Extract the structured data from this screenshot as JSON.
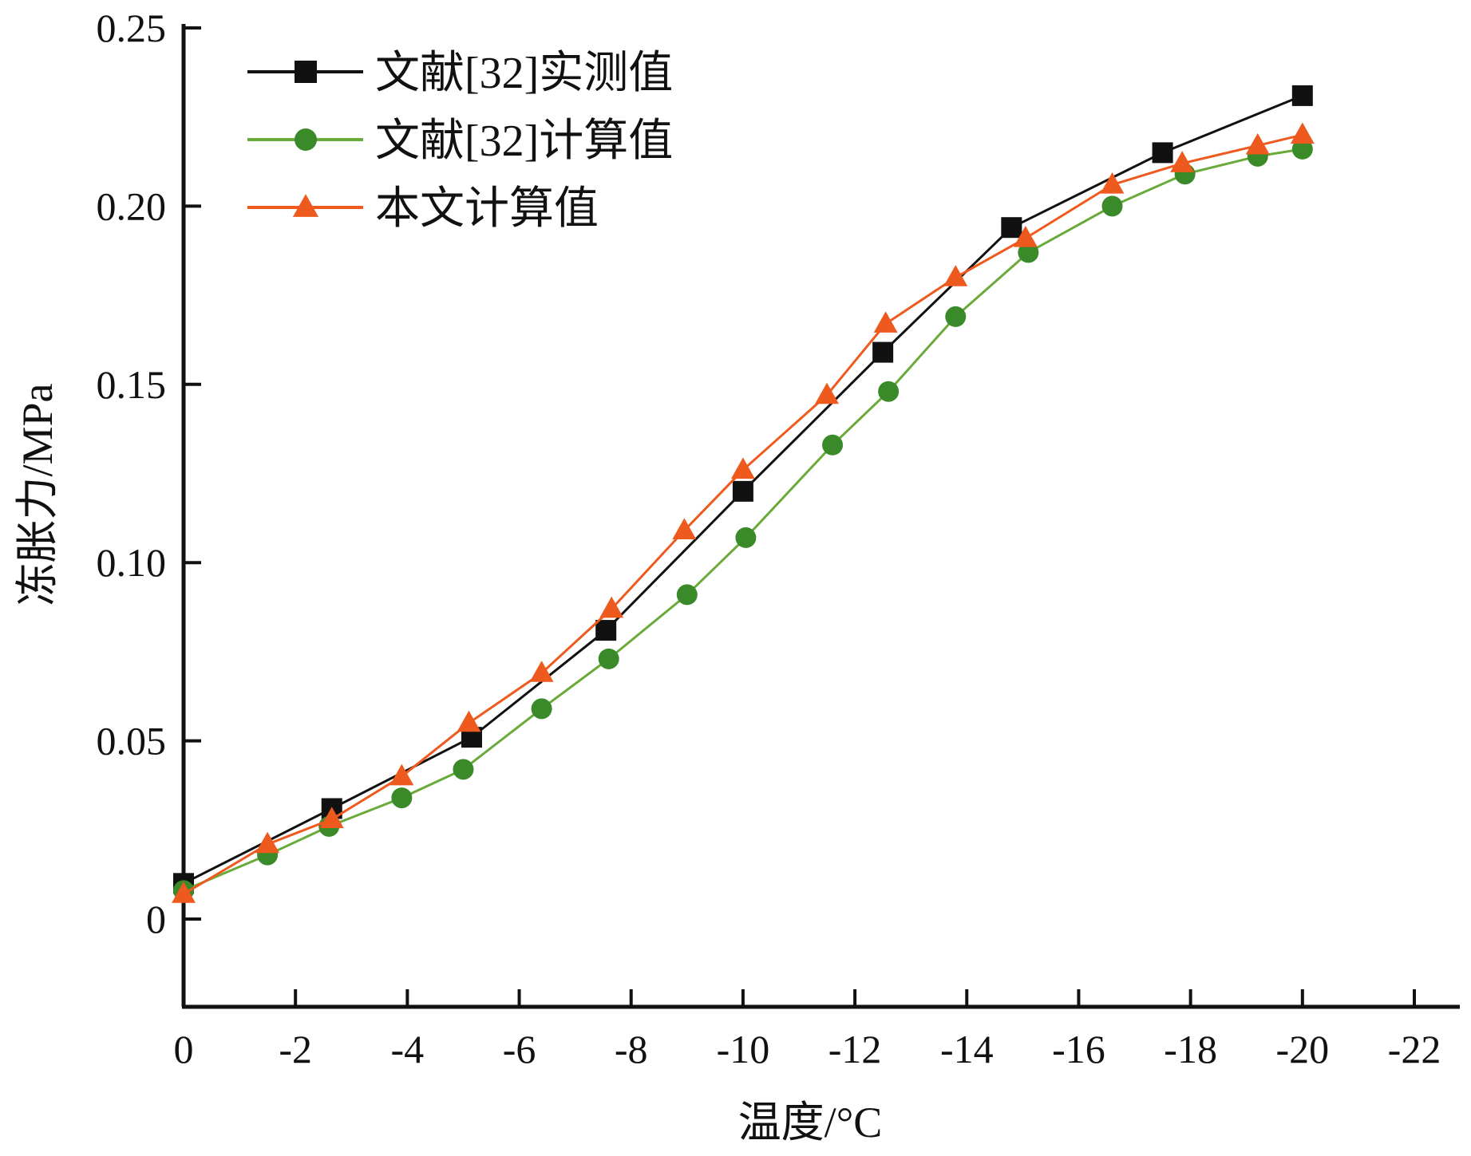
{
  "chart_data": {
    "type": "line",
    "title": "",
    "xlabel": "温度/°C",
    "ylabel": "冻胀力/MPa",
    "xlim": [
      0,
      -22
    ],
    "ylim": [
      -0.025,
      0.25
    ],
    "x_ticks": [
      0,
      -2,
      -4,
      -6,
      -8,
      -10,
      -12,
      -14,
      -16,
      -18,
      -20,
      -22
    ],
    "x_tick_labels": [
      "0",
      "-2",
      "-4",
      "-6",
      "-8",
      "-10",
      "-12",
      "-14",
      "-16",
      "-18",
      "-20",
      "-22"
    ],
    "y_ticks": [
      0,
      0.05,
      0.1,
      0.15,
      0.2,
      0.25
    ],
    "y_tick_labels": [
      "0",
      "0.05",
      "0.10",
      "0.15",
      "0.20",
      "0.25"
    ],
    "grid": false,
    "legend_position": "top-left",
    "series": [
      {
        "name": "文献[32]实测值",
        "color": "#111111",
        "marker": "square",
        "x": [
          0,
          -2.65,
          -5.15,
          -7.55,
          -10,
          -12.5,
          -14.8,
          -17.5,
          -20
        ],
        "y": [
          0.01,
          0.031,
          0.051,
          0.081,
          0.12,
          0.159,
          0.194,
          0.215,
          0.231
        ]
      },
      {
        "name": "文献[32]计算值",
        "color": "#3a8a2a",
        "line_color": "#6aaa3a",
        "marker": "circle",
        "x": [
          0,
          -1.5,
          -2.6,
          -3.9,
          -5.0,
          -6.4,
          -7.6,
          -9.0,
          -10.05,
          -11.6,
          -12.6,
          -13.8,
          -15.1,
          -16.6,
          -17.9,
          -19.2,
          -20
        ],
        "y": [
          0.008,
          0.018,
          0.026,
          0.034,
          0.042,
          0.059,
          0.073,
          0.091,
          0.107,
          0.133,
          0.148,
          0.169,
          0.187,
          0.2,
          0.209,
          0.214,
          0.216
        ]
      },
      {
        "name": "本文计算值",
        "color": "#ee5a1e",
        "marker": "triangle",
        "x": [
          0,
          -1.5,
          -2.65,
          -3.9,
          -5.1,
          -6.4,
          -7.65,
          -8.95,
          -10,
          -11.5,
          -12.55,
          -13.8,
          -15.05,
          -16.6,
          -17.85,
          -19.2,
          -20
        ],
        "y": [
          0.007,
          0.021,
          0.028,
          0.04,
          0.055,
          0.069,
          0.087,
          0.109,
          0.126,
          0.147,
          0.167,
          0.18,
          0.191,
          0.206,
          0.212,
          0.217,
          0.22
        ]
      }
    ]
  }
}
